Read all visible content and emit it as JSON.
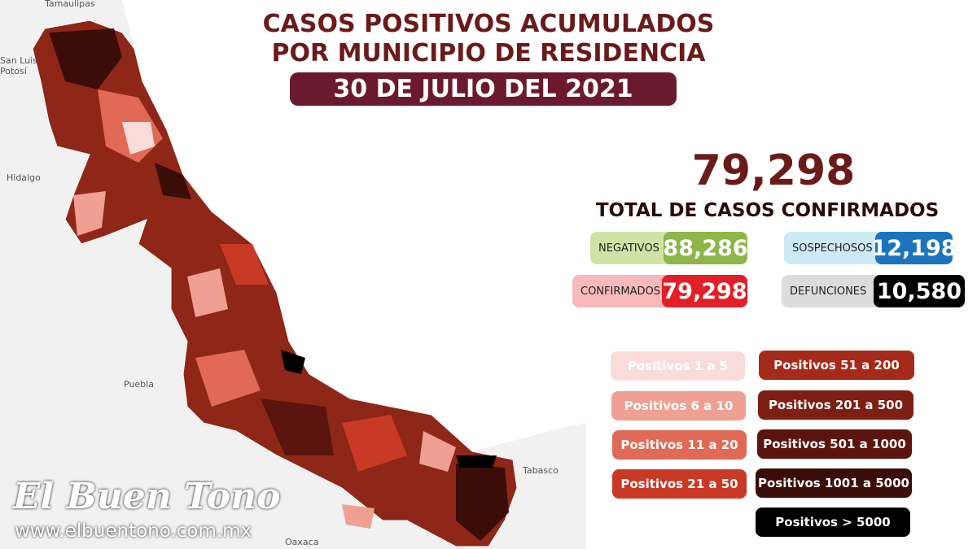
{
  "header": {
    "title_lines": [
      "CASOS POSITIVOS ACUMULADOS",
      "POR MUNICIPIO DE RESIDENCIA"
    ],
    "date": "30 DE JULIO DEL 2021"
  },
  "total": {
    "value": "79,298",
    "label": "TOTAL DE CASOS CONFIRMADOS"
  },
  "stats": [
    {
      "label": "NEGATIVOS",
      "value": "88,286",
      "label_color": "#cfe3a6",
      "value_color": "#8db54a"
    },
    {
      "label": "SOSPECHOSOS",
      "value": "12,198",
      "label_color": "#cde9f5",
      "value_color": "#1c75bc"
    },
    {
      "label": "CONFIRMADOS",
      "value": "79,298",
      "label_color": "#f7b9b9",
      "value_color": "#e41e26"
    },
    {
      "label": "DEFUNCIONES",
      "value": "10,580",
      "label_color": "#dcdcdc",
      "value_color": "#000000"
    }
  ],
  "legend": [
    {
      "label": "Positivos 1 a 5",
      "color": "#f9dcd9"
    },
    {
      "label": "Positivos 6 a 10",
      "color": "#efa093"
    },
    {
      "label": "Positivos 11 a 20",
      "color": "#e06a55"
    },
    {
      "label": "Positivos 21 a 50",
      "color": "#c93a26"
    },
    {
      "label": "Positivos 51 a 200",
      "color": "#a62a1a"
    },
    {
      "label": "Positivos 201 a 500",
      "color": "#7d1f13"
    },
    {
      "label": "Positivos 501 a 1000",
      "color": "#5a150e"
    },
    {
      "label": "Positivos 1001 a 5000",
      "color": "#3a0d08"
    },
    {
      "label": "Positivos > 5000",
      "color": "#000000"
    }
  ],
  "map_labels": [
    "Tamaulipas",
    "San Luis",
    "Potosí",
    "Hidalgo",
    "Puebla",
    "Tabasco",
    "Oaxaca"
  ],
  "watermark": {
    "name": "El Buen Tono",
    "url": "www.elbuentono.com.mx"
  }
}
